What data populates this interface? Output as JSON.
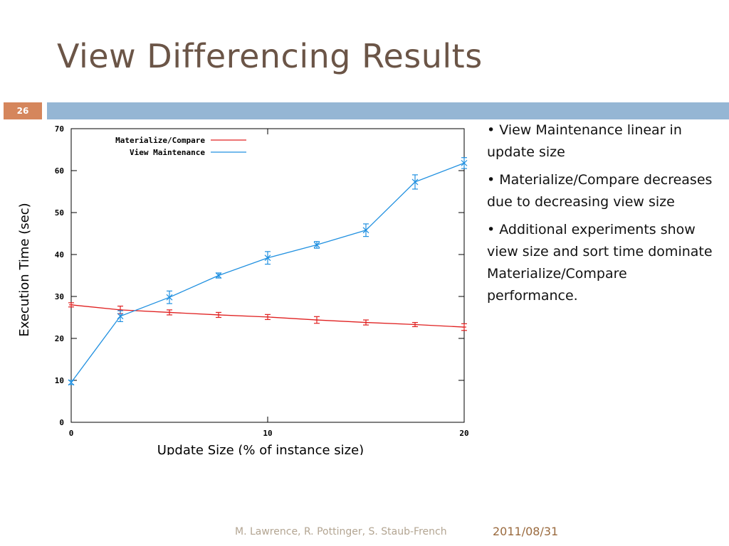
{
  "slide": {
    "title": "View Differencing Results",
    "number": "26",
    "footer_authors": "M. Lawrence, R. Pottinger, S. Staub-French",
    "footer_date": "2011/08/31",
    "accent_bar_color": "#95b6d4",
    "number_badge_color": "#d5865c",
    "title_color": "#6b5547"
  },
  "bullets": [
    "• View Maintenance linear in update size",
    "• Materialize/Compare decreases due to decreasing view size",
    "• Additional experiments show view size and sort time dominate Materialize/Compare performance."
  ],
  "chart_data": {
    "type": "line",
    "xlabel": "Update Size (% of instance size)",
    "ylabel": "Execution Time (sec)",
    "xlim": [
      0,
      20
    ],
    "ylim": [
      0,
      70
    ],
    "xticks": [
      0,
      10,
      20
    ],
    "yticks": [
      0,
      10,
      20,
      30,
      40,
      50,
      60,
      70
    ],
    "legend_position": "top-left",
    "grid": false,
    "series": [
      {
        "name": "Materialize/Compare",
        "color": "#e02020",
        "x": [
          0,
          2.5,
          5,
          7.5,
          10,
          12.5,
          15,
          17.5,
          20
        ],
        "y": [
          28,
          26.8,
          26.2,
          25.6,
          25.1,
          24.4,
          23.8,
          23.3,
          22.7
        ],
        "err": [
          0.5,
          0.9,
          0.6,
          0.6,
          0.6,
          0.8,
          0.6,
          0.5,
          0.8
        ]
      },
      {
        "name": "View Maintenance",
        "color": "#2090e0",
        "x": [
          0,
          2.5,
          5,
          7.5,
          10,
          12.5,
          15,
          17.5,
          20
        ],
        "y": [
          9.5,
          25.3,
          29.8,
          35,
          39.2,
          42.3,
          45.8,
          57.3,
          61.8
        ],
        "err": [
          0.5,
          1.3,
          1.5,
          0.6,
          1.5,
          0.8,
          1.5,
          1.7,
          1.3
        ]
      }
    ]
  }
}
